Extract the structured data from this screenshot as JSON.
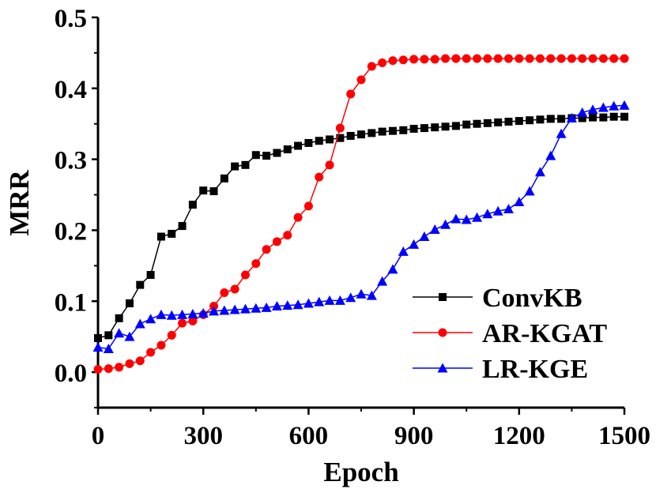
{
  "chart_data": {
    "type": "line",
    "title": "",
    "xlabel": "Epoch",
    "ylabel": "MRR",
    "xlim": [
      0,
      1500
    ],
    "ylim": [
      -0.05,
      0.5
    ],
    "xticks": [
      0,
      300,
      600,
      900,
      1200,
      1500
    ],
    "yticks": [
      0.0,
      0.1,
      0.2,
      0.3,
      0.4,
      0.5
    ],
    "xtick_labels": [
      "0",
      "300",
      "600",
      "900",
      "1200",
      "1500"
    ],
    "ytick_labels": [
      "0.0",
      "0.1",
      "0.2",
      "0.3",
      "0.4",
      "0.5"
    ],
    "legend_position": "lower-right",
    "series": [
      {
        "name": "ConvKB",
        "color": "#000000",
        "marker": "square",
        "x": [
          0,
          30,
          60,
          90,
          120,
          150,
          180,
          210,
          240,
          270,
          300,
          330,
          360,
          390,
          420,
          450,
          480,
          510,
          540,
          570,
          600,
          630,
          660,
          690,
          720,
          750,
          780,
          810,
          840,
          870,
          900,
          930,
          960,
          990,
          1020,
          1050,
          1080,
          1110,
          1140,
          1170,
          1200,
          1230,
          1260,
          1290,
          1320,
          1350,
          1380,
          1410,
          1440,
          1470,
          1500
        ],
        "y": [
          0.048,
          0.052,
          0.076,
          0.097,
          0.123,
          0.137,
          0.191,
          0.195,
          0.206,
          0.236,
          0.256,
          0.255,
          0.273,
          0.29,
          0.292,
          0.306,
          0.305,
          0.309,
          0.314,
          0.319,
          0.323,
          0.326,
          0.328,
          0.33,
          0.333,
          0.335,
          0.337,
          0.339,
          0.34,
          0.341,
          0.343,
          0.344,
          0.345,
          0.346,
          0.347,
          0.349,
          0.35,
          0.351,
          0.352,
          0.353,
          0.354,
          0.355,
          0.356,
          0.357,
          0.357,
          0.358,
          0.358,
          0.359,
          0.359,
          0.36,
          0.36
        ]
      },
      {
        "name": "AR-KGAT",
        "color": "#ff0000",
        "marker": "circle",
        "x": [
          0,
          30,
          60,
          90,
          120,
          150,
          180,
          210,
          240,
          270,
          300,
          330,
          360,
          390,
          420,
          450,
          480,
          510,
          540,
          570,
          600,
          630,
          660,
          690,
          720,
          750,
          780,
          810,
          840,
          870,
          900,
          930,
          960,
          990,
          1020,
          1050,
          1080,
          1110,
          1140,
          1170,
          1200,
          1230,
          1260,
          1290,
          1320,
          1350,
          1380,
          1410,
          1440,
          1470,
          1500
        ],
        "y": [
          0.004,
          0.005,
          0.007,
          0.012,
          0.016,
          0.028,
          0.038,
          0.052,
          0.069,
          0.072,
          0.081,
          0.093,
          0.112,
          0.117,
          0.137,
          0.153,
          0.173,
          0.184,
          0.193,
          0.218,
          0.234,
          0.275,
          0.292,
          0.344,
          0.392,
          0.412,
          0.431,
          0.436,
          0.439,
          0.44,
          0.441,
          0.441,
          0.441,
          0.442,
          0.442,
          0.442,
          0.442,
          0.442,
          0.442,
          0.442,
          0.442,
          0.442,
          0.442,
          0.442,
          0.442,
          0.442,
          0.442,
          0.442,
          0.442,
          0.442,
          0.442
        ]
      },
      {
        "name": "LR-KGE",
        "color": "#0000ff",
        "marker": "triangle",
        "x": [
          0,
          30,
          60,
          90,
          120,
          150,
          180,
          210,
          240,
          270,
          300,
          330,
          360,
          390,
          420,
          450,
          480,
          510,
          540,
          570,
          600,
          630,
          660,
          690,
          720,
          750,
          780,
          810,
          840,
          870,
          900,
          930,
          960,
          990,
          1020,
          1050,
          1080,
          1110,
          1140,
          1170,
          1200,
          1230,
          1260,
          1290,
          1320,
          1350,
          1380,
          1410,
          1440,
          1470,
          1500
        ],
        "y": [
          0.035,
          0.033,
          0.055,
          0.05,
          0.068,
          0.075,
          0.081,
          0.08,
          0.081,
          0.082,
          0.083,
          0.086,
          0.087,
          0.088,
          0.089,
          0.09,
          0.091,
          0.093,
          0.094,
          0.095,
          0.097,
          0.099,
          0.101,
          0.101,
          0.105,
          0.11,
          0.108,
          0.128,
          0.145,
          0.17,
          0.18,
          0.191,
          0.201,
          0.208,
          0.216,
          0.215,
          0.218,
          0.223,
          0.227,
          0.23,
          0.24,
          0.255,
          0.282,
          0.305,
          0.336,
          0.358,
          0.366,
          0.37,
          0.373,
          0.375,
          0.376
        ]
      }
    ]
  }
}
